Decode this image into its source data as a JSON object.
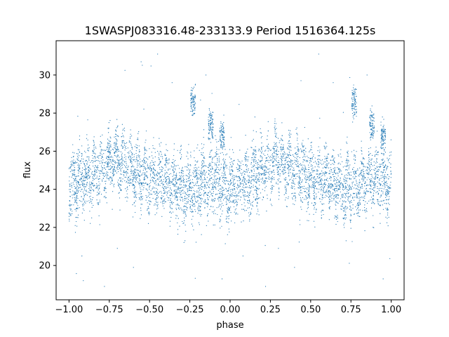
{
  "chart_data": {
    "type": "scatter",
    "title": "1SWASPJ083316.48-233133.9 Period 1516364.125s",
    "xlabel": "phase",
    "ylabel": "flux",
    "xlim": [
      -1.08,
      1.08
    ],
    "ylim": [
      18.2,
      31.8
    ],
    "xticks": [
      -1.0,
      -0.75,
      -0.5,
      -0.25,
      0.0,
      0.25,
      0.5,
      0.75,
      1.0
    ],
    "xtick_labels": [
      "−1.00",
      "−0.75",
      "−0.50",
      "−0.25",
      "0.00",
      "0.25",
      "0.50",
      "0.75",
      "1.00"
    ],
    "yticks": [
      20,
      22,
      24,
      26,
      28,
      30
    ],
    "ytick_labels": [
      "20",
      "22",
      "24",
      "26",
      "28",
      "30"
    ],
    "grid": false,
    "marker_color": "#1f77b4",
    "series": [
      {
        "profile": [
          {
            "x": -1.0,
            "y": 24.2,
            "spread": 1.2
          },
          {
            "x": -0.9,
            "y": 24.6,
            "spread": 1.2
          },
          {
            "x": -0.8,
            "y": 25.0,
            "spread": 1.1
          },
          {
            "x": -0.7,
            "y": 25.6,
            "spread": 1.0
          },
          {
            "x": -0.6,
            "y": 25.0,
            "spread": 1.2
          },
          {
            "x": -0.5,
            "y": 24.6,
            "spread": 1.2
          },
          {
            "x": -0.4,
            "y": 24.5,
            "spread": 1.1
          },
          {
            "x": -0.3,
            "y": 24.0,
            "spread": 1.2
          },
          {
            "x": -0.2,
            "y": 24.2,
            "spread": 1.2
          },
          {
            "x": -0.1,
            "y": 24.6,
            "spread": 1.3
          },
          {
            "x": 0.0,
            "y": 24.0,
            "spread": 1.2
          },
          {
            "x": 0.1,
            "y": 24.4,
            "spread": 1.2
          },
          {
            "x": 0.2,
            "y": 25.0,
            "spread": 1.2
          },
          {
            "x": 0.3,
            "y": 25.6,
            "spread": 1.0
          },
          {
            "x": 0.4,
            "y": 25.0,
            "spread": 1.2
          },
          {
            "x": 0.5,
            "y": 24.6,
            "spread": 1.2
          },
          {
            "x": 0.6,
            "y": 24.5,
            "spread": 1.1
          },
          {
            "x": 0.7,
            "y": 24.0,
            "spread": 1.2
          },
          {
            "x": 0.8,
            "y": 24.2,
            "spread": 1.2
          },
          {
            "x": 0.9,
            "y": 24.6,
            "spread": 1.3
          },
          {
            "x": 1.0,
            "y": 24.2,
            "spread": 1.2
          }
        ],
        "bright_clumps": [
          {
            "x": -0.23,
            "y": 28.6,
            "spread": 0.4
          },
          {
            "x": -0.12,
            "y": 27.4,
            "spread": 0.4
          },
          {
            "x": -0.05,
            "y": 26.8,
            "spread": 0.4
          },
          {
            "x": 0.77,
            "y": 28.6,
            "spread": 0.4
          },
          {
            "x": 0.88,
            "y": 27.4,
            "spread": 0.4
          },
          {
            "x": 0.95,
            "y": 26.8,
            "spread": 0.4
          }
        ],
        "outliers": [
          {
            "x": -0.45,
            "y": 31.1
          },
          {
            "x": 0.55,
            "y": 31.1
          },
          {
            "x": -0.78,
            "y": 18.9
          },
          {
            "x": 0.22,
            "y": 18.9
          },
          {
            "x": -0.6,
            "y": 19.9
          },
          {
            "x": 0.4,
            "y": 19.9
          },
          {
            "x": -0.92,
            "y": 20.5
          },
          {
            "x": 0.08,
            "y": 20.5
          },
          {
            "x": -0.15,
            "y": 30.0
          },
          {
            "x": 0.85,
            "y": 30.0
          },
          {
            "x": -0.36,
            "y": 29.6
          },
          {
            "x": 0.64,
            "y": 29.6
          },
          {
            "x": -0.05,
            "y": 19.3
          },
          {
            "x": 0.95,
            "y": 19.3
          },
          {
            "x": -0.7,
            "y": 20.9
          },
          {
            "x": 0.3,
            "y": 20.9
          },
          {
            "x": -0.28,
            "y": 21.3
          },
          {
            "x": 0.72,
            "y": 21.3
          }
        ]
      }
    ]
  }
}
